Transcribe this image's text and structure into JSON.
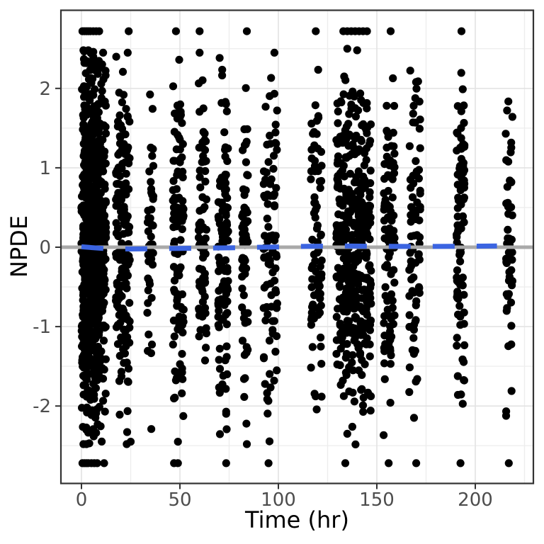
{
  "figure": {
    "background": "#FFFFFF",
    "panel_background": "#FFFFFF",
    "panel_border_color": "#333333",
    "major_grid_color": "#E3E3E3",
    "minor_grid_color": "#EDEDED",
    "tick_mark_color": "#333333",
    "tick_label_color": "#4D4D4D",
    "axis_title_color": "#000000"
  },
  "chart_data": {
    "type": "scatter",
    "title": "",
    "xlabel": "Time (hr)",
    "ylabel": "NPDE",
    "xlim": [
      -10.4,
      229.5
    ],
    "ylim": [
      -2.97,
      2.99
    ],
    "x_ticks": [
      0,
      50,
      100,
      150,
      200
    ],
    "x_tick_labels": [
      "0",
      "50",
      "100",
      "150",
      "200"
    ],
    "y_ticks": [
      -2,
      -1,
      0,
      1,
      2
    ],
    "y_tick_labels": [
      "-2",
      "-1",
      "0",
      "1",
      "2"
    ],
    "x_minor_ticks": [
      25,
      75,
      125,
      175,
      225
    ],
    "y_minor_ticks": [
      -2.5,
      -1.5,
      -0.5,
      0.5,
      1.5,
      2.5
    ],
    "grid": true,
    "legend": "none",
    "point_color": "#000000",
    "point_radius_px": 5.6,
    "reference_line": {
      "y": 0,
      "color": "#A9A9A9"
    },
    "smooth_line": {
      "style": "dashed",
      "color": "#3B64E1",
      "x": [
        0,
        12,
        25,
        50,
        75,
        100,
        115,
        130,
        150,
        170,
        190,
        211
      ],
      "npde": [
        0.005,
        -0.018,
        -0.022,
        -0.015,
        -0.008,
        0.004,
        0.012,
        0.016,
        0.012,
        0.01,
        0.012,
        0.016
      ]
    },
    "observation_bands": [
      {
        "time_points": [
          0.5,
          1,
          1.5,
          2,
          2.5,
          3,
          3.5,
          4,
          4.5,
          5,
          5.5,
          6,
          6.5,
          7,
          7.5,
          8,
          8.5,
          9,
          10,
          11,
          12
        ],
        "n": 760,
        "sd": 1.08
      },
      {
        "time_points": [
          18,
          19,
          20,
          21,
          22,
          23,
          24
        ],
        "n": 170,
        "sd": 1.05
      },
      {
        "time_points": [
          34,
          35,
          36
        ],
        "n": 45,
        "sd": 0.95
      },
      {
        "time_points": [
          47,
          48.5,
          50,
          51.5
        ],
        "n": 110,
        "sd": 1.0
      },
      {
        "time_points": [
          60,
          61.5,
          63
        ],
        "n": 75,
        "sd": 1.0
      },
      {
        "time_points": [
          70,
          71.5,
          73,
          74
        ],
        "n": 110,
        "sd": 1.0
      },
      {
        "time_points": [
          82,
          83,
          84
        ],
        "n": 60,
        "sd": 1.0
      },
      {
        "time_points": [
          93,
          94.5,
          96,
          97.5,
          99
        ],
        "n": 90,
        "sd": 1.05
      },
      {
        "time_points": [
          117,
          118.5,
          120,
          121.5
        ],
        "n": 80,
        "sd": 1.0
      },
      {
        "time_points": [
          130,
          131.5,
          133,
          134.5,
          136,
          137.5,
          139,
          140.5,
          142,
          143.5,
          145,
          146.5
        ],
        "n": 420,
        "sd": 1.05
      },
      {
        "time_points": [
          154,
          155.5,
          157,
          158.5
        ],
        "n": 100,
        "sd": 1.0
      },
      {
        "time_points": [
          167,
          168.5,
          170,
          171.5
        ],
        "n": 80,
        "sd": 1.0
      },
      {
        "time_points": [
          191,
          192.5,
          194
        ],
        "n": 90,
        "sd": 1.0
      },
      {
        "time_points": [
          216,
          217,
          218.5
        ],
        "n": 55,
        "sd": 0.95
      }
    ],
    "outlier_points": [
      {
        "t": 0.5,
        "npde": 2.72
      },
      {
        "t": 1.5,
        "npde": 2.72
      },
      {
        "t": 2.5,
        "npde": 2.72
      },
      {
        "t": 3.5,
        "npde": 2.72
      },
      {
        "t": 4.5,
        "npde": 2.72
      },
      {
        "t": 6,
        "npde": 2.72
      },
      {
        "t": 7.5,
        "npde": 2.72
      },
      {
        "t": 9,
        "npde": 2.72
      },
      {
        "t": 24,
        "npde": 2.72
      },
      {
        "t": 48,
        "npde": 2.72
      },
      {
        "t": 60,
        "npde": 2.72
      },
      {
        "t": 84,
        "npde": 2.72
      },
      {
        "t": 119,
        "npde": 2.72
      },
      {
        "t": 133,
        "npde": 2.72
      },
      {
        "t": 135,
        "npde": 2.72
      },
      {
        "t": 137,
        "npde": 2.72
      },
      {
        "t": 139,
        "npde": 2.72
      },
      {
        "t": 141,
        "npde": 2.72
      },
      {
        "t": 143,
        "npde": 2.72
      },
      {
        "t": 145,
        "npde": 2.72
      },
      {
        "t": 157,
        "npde": 2.72
      },
      {
        "t": 193,
        "npde": 2.72
      },
      {
        "t": 1,
        "npde": 2.48
      },
      {
        "t": 3.5,
        "npde": 2.48
      },
      {
        "t": 6,
        "npde": 2.46
      },
      {
        "t": 11,
        "npde": 2.45
      },
      {
        "t": 1.5,
        "npde": 2.32
      },
      {
        "t": 5,
        "npde": 2.3
      },
      {
        "t": 8,
        "npde": 2.31
      },
      {
        "t": 23.5,
        "npde": 2.45
      },
      {
        "t": 60,
        "npde": 2.45
      },
      {
        "t": 98,
        "npde": 2.45
      },
      {
        "t": 135,
        "npde": 2.5
      },
      {
        "t": 140,
        "npde": 2.48
      },
      {
        "t": 0.5,
        "npde": -2.72
      },
      {
        "t": 1.5,
        "npde": -2.72
      },
      {
        "t": 2.5,
        "npde": -2.72
      },
      {
        "t": 3.5,
        "npde": -2.72
      },
      {
        "t": 5,
        "npde": -2.72
      },
      {
        "t": 6.5,
        "npde": -2.72
      },
      {
        "t": 8,
        "npde": -2.72
      },
      {
        "t": 11.5,
        "npde": -2.72
      },
      {
        "t": 47,
        "npde": -2.72
      },
      {
        "t": 49,
        "npde": -2.72
      },
      {
        "t": 73.5,
        "npde": -2.72
      },
      {
        "t": 95,
        "npde": -2.72
      },
      {
        "t": 134,
        "npde": -2.72
      },
      {
        "t": 156,
        "npde": -2.72
      },
      {
        "t": 170,
        "npde": -2.72
      },
      {
        "t": 192.5,
        "npde": -2.72
      },
      {
        "t": 217,
        "npde": -2.72
      },
      {
        "t": 1,
        "npde": -2.48
      },
      {
        "t": 2.5,
        "npde": -2.48
      },
      {
        "t": 4,
        "npde": -2.47
      },
      {
        "t": 23,
        "npde": -2.48
      },
      {
        "t": 84,
        "npde": -2.48
      },
      {
        "t": 25,
        "npde": -2.45
      },
      {
        "t": 49,
        "npde": -2.45
      },
      {
        "t": 135,
        "npde": -2.35
      }
    ],
    "sampling_seed": 20
  }
}
